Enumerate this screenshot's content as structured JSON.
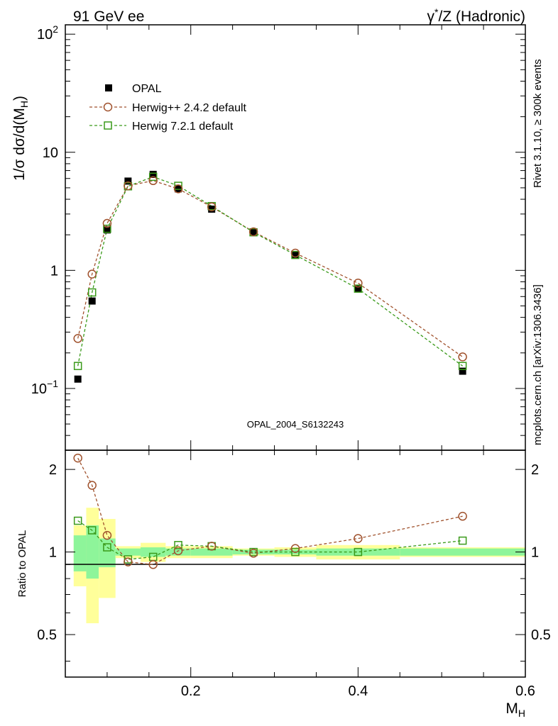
{
  "header": {
    "left": "91 GeV ee",
    "right_prefix": "γ",
    "right_sup": "*",
    "right_suffix": "/Z (Hadronic)"
  },
  "side": {
    "rivet": "Rivet 3.1.10, ≥ 300k events",
    "source": "mcplots.cern.ch [arXiv:1306.3436]"
  },
  "colors": {
    "data": "#000000",
    "herwigpp": "#a0522d",
    "herwig7": "#3a9a1a",
    "band_inner": "#8ef59a",
    "band_outer": "#ffff9a",
    "watermark": "#999999",
    "side_text": "#8c8c8c"
  },
  "chart_data": [
    {
      "type": "scatter",
      "name": "main",
      "title": "OPAL_2004_S6132243",
      "xlabel_main": "M",
      "xlabel_sub": "H",
      "ylabel": "1/σ dσ/d(M",
      "ylabel_sub": "H",
      "ylabel_close": ")",
      "yscale": "log",
      "xlim": [
        0.05,
        0.6
      ],
      "ylim": [
        0.03,
        120
      ],
      "legend": [
        {
          "key": "opal",
          "label": "OPAL",
          "marker": "filled-square"
        },
        {
          "key": "herwigpp",
          "label": "Herwig++ 2.4.2 default",
          "marker": "open-circle"
        },
        {
          "key": "herwig7",
          "label": "Herwig 7.2.1 default",
          "marker": "open-square"
        }
      ],
      "legend_position": "top-left",
      "x": [
        0.065,
        0.082,
        0.1,
        0.125,
        0.155,
        0.185,
        0.225,
        0.275,
        0.325,
        0.4,
        0.525
      ],
      "series": [
        {
          "name": "OPAL",
          "key": "opal",
          "values": [
            0.12,
            0.55,
            2.2,
            5.7,
            6.5,
            4.9,
            3.3,
            2.1,
            1.35,
            0.7,
            0.14
          ]
        },
        {
          "name": "Herwig++ 2.4.2 default",
          "key": "herwigpp",
          "values": [
            0.265,
            0.93,
            2.5,
            5.2,
            5.75,
            4.9,
            3.45,
            2.12,
            1.4,
            0.78,
            0.185
          ]
        },
        {
          "name": "Herwig 7.2.1 default",
          "key": "herwig7",
          "values": [
            0.155,
            0.65,
            2.25,
            5.15,
            6.2,
            5.2,
            3.5,
            2.1,
            1.35,
            0.7,
            0.155
          ]
        }
      ],
      "y_ticks": [
        {
          "value": 0.1,
          "base": "10",
          "exp": "−1"
        },
        {
          "value": 1,
          "base": "1",
          "exp": ""
        },
        {
          "value": 10,
          "base": "10",
          "exp": ""
        },
        {
          "value": 100,
          "base": "10",
          "exp": "2"
        }
      ]
    },
    {
      "type": "scatter",
      "name": "ratio",
      "ylabel": "Ratio to OPAL",
      "xlabel": "M",
      "xlabel_sub": "H",
      "xlim": [
        0.05,
        0.6
      ],
      "ylim": [
        0.35,
        2.35
      ],
      "bins": [
        [
          0.06,
          0.075
        ],
        [
          0.075,
          0.09
        ],
        [
          0.09,
          0.11
        ],
        [
          0.11,
          0.14
        ],
        [
          0.14,
          0.17
        ],
        [
          0.17,
          0.2
        ],
        [
          0.2,
          0.25
        ],
        [
          0.25,
          0.3
        ],
        [
          0.3,
          0.35
        ],
        [
          0.35,
          0.45
        ],
        [
          0.45,
          0.6
        ]
      ],
      "band_inner": [
        [
          0.85,
          1.15
        ],
        [
          0.8,
          1.25
        ],
        [
          0.88,
          1.12
        ],
        [
          0.97,
          1.03
        ],
        [
          0.96,
          1.04
        ],
        [
          0.97,
          1.03
        ],
        [
          0.97,
          1.03
        ],
        [
          0.98,
          1.02
        ],
        [
          0.98,
          1.02
        ],
        [
          0.97,
          1.03
        ],
        [
          0.97,
          1.03
        ]
      ],
      "band_outer": [
        [
          0.75,
          1.25
        ],
        [
          0.55,
          1.45
        ],
        [
          0.68,
          1.32
        ],
        [
          0.95,
          1.05
        ],
        [
          0.92,
          1.08
        ],
        [
          0.95,
          1.05
        ],
        [
          0.95,
          1.05
        ],
        [
          0.97,
          1.03
        ],
        [
          0.96,
          1.04
        ],
        [
          0.94,
          1.06
        ],
        [
          0.96,
          1.04
        ]
      ],
      "x": [
        0.065,
        0.082,
        0.1,
        0.125,
        0.155,
        0.185,
        0.225,
        0.275,
        0.325,
        0.4,
        0.525
      ],
      "series": [
        {
          "name": "Herwig++ 2.4.2 default",
          "key": "herwigpp",
          "values": [
            2.2,
            1.75,
            1.15,
            0.92,
            0.9,
            1.01,
            1.05,
            0.99,
            1.03,
            1.12,
            1.35
          ]
        },
        {
          "name": "Herwig 7.2.1 default",
          "key": "herwig7",
          "values": [
            1.3,
            1.2,
            1.04,
            0.94,
            0.96,
            1.06,
            1.05,
            1.0,
            1.0,
            1.0,
            1.1
          ]
        }
      ],
      "y_ticks": [
        0.5,
        1,
        2
      ],
      "y_tick_labels": [
        "0.5",
        "1",
        "2"
      ],
      "x_ticks": [
        0.2,
        0.4,
        0.6
      ],
      "x_tick_labels": [
        "0.2",
        "0.4",
        "0.6"
      ]
    }
  ]
}
